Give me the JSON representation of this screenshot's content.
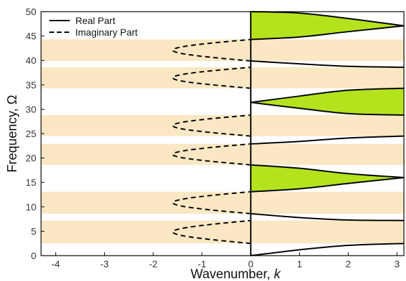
{
  "chart_data": {
    "type": "line",
    "xlabel": "Wavenumber,",
    "xlabel_symbol": "k",
    "ylabel": "Frequency, Ω",
    "xlim": [
      -4.3,
      3.1416
    ],
    "ylim": [
      0,
      50
    ],
    "x_ticks": [
      -4,
      -3,
      -2,
      -1,
      0,
      1,
      2,
      3
    ],
    "y_ticks": [
      0,
      5,
      10,
      15,
      20,
      25,
      30,
      35,
      40,
      45,
      50
    ],
    "grid": false,
    "legend_position": "top-left",
    "legend": [
      {
        "label": "Real Part",
        "style": "solid"
      },
      {
        "label": "Imaginary Part",
        "style": "dashed"
      }
    ],
    "colors": {
      "stop_band": "#fbe7c3",
      "pass_band_fill": "#b4e31e",
      "line": "#000000"
    },
    "stop_bands": [
      [
        2.5,
        7.2
      ],
      [
        8.6,
        13.1
      ],
      [
        18.6,
        22.9
      ],
      [
        24.5,
        28.8
      ],
      [
        34.3,
        38.6
      ],
      [
        39.9,
        44.3
      ]
    ],
    "real_part_curves": [
      {
        "x": [
          0,
          1,
          2,
          3.1416
        ],
        "y": [
          0,
          1.2,
          2.1,
          2.5
        ]
      },
      {
        "x": [
          0,
          1,
          2,
          3.1416
        ],
        "y": [
          8.6,
          7.8,
          7.3,
          7.2
        ]
      },
      {
        "x": [
          0,
          1,
          2,
          3.1416
        ],
        "y": [
          13.1,
          13.7,
          14.8,
          16.0
        ]
      },
      {
        "x": [
          0,
          1,
          2,
          3.1416
        ],
        "y": [
          18.6,
          17.9,
          16.8,
          16.0
        ]
      },
      {
        "x": [
          0,
          1,
          2,
          3.1416
        ],
        "y": [
          22.9,
          23.4,
          24.1,
          24.5
        ]
      },
      {
        "x": [
          0,
          1,
          2,
          3.1416
        ],
        "y": [
          31.4,
          30.2,
          29.1,
          28.8
        ]
      },
      {
        "x": [
          0,
          1,
          2,
          3.1416
        ],
        "y": [
          31.4,
          32.7,
          33.9,
          34.3
        ]
      },
      {
        "x": [
          0,
          1,
          2,
          3.1416
        ],
        "y": [
          39.9,
          39.3,
          38.8,
          38.6
        ]
      },
      {
        "x": [
          0,
          1,
          2,
          3.1416
        ],
        "y": [
          44.3,
          44.8,
          45.9,
          47.1
        ]
      },
      {
        "x": [
          0,
          1,
          2,
          3.1416
        ],
        "y": [
          50.0,
          49.7,
          48.6,
          47.1
        ]
      }
    ],
    "pass_band_fills": [
      {
        "lower": 2,
        "upper": 3
      },
      {
        "lower": 5,
        "upper": 6
      },
      {
        "lower": 8,
        "upper": 9
      }
    ],
    "imaginary_part_curves": [
      {
        "y_range": [
          2.5,
          7.2
        ],
        "max_abs_k": 1.6
      },
      {
        "y_range": [
          8.6,
          13.1
        ],
        "max_abs_k": 1.6
      },
      {
        "y_range": [
          18.6,
          22.9
        ],
        "max_abs_k": 1.6
      },
      {
        "y_range": [
          24.5,
          28.8
        ],
        "max_abs_k": 1.6
      },
      {
        "y_range": [
          34.3,
          38.6
        ],
        "max_abs_k": 1.6
      },
      {
        "y_range": [
          39.9,
          44.3
        ],
        "max_abs_k": 1.6
      }
    ]
  }
}
